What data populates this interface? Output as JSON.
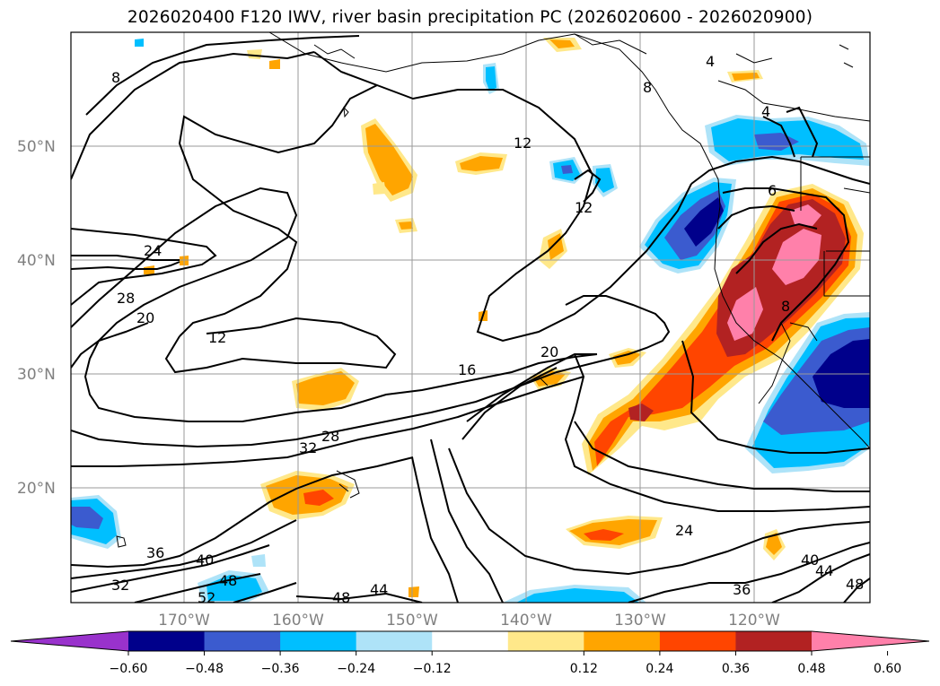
{
  "title": "2026020400 F120 IWV, river basin precipitation PC (2026020600 - 2026020900)",
  "map": {
    "lon_labels": [
      "170°W",
      "160°W",
      "150°W",
      "140°W",
      "130°W",
      "120°W"
    ],
    "lat_labels": [
      "50°N",
      "40°N",
      "30°N",
      "20°N"
    ],
    "iwv_contour_labels": [
      "8",
      "12",
      "12",
      "12",
      "16",
      "20",
      "20",
      "24",
      "24",
      "28",
      "28",
      "32",
      "32",
      "36",
      "36",
      "40",
      "40",
      "44",
      "44",
      "48",
      "48",
      "48",
      "52",
      "8",
      "6",
      "8",
      "4",
      "4"
    ]
  },
  "colorbar": {
    "tick_labels": [
      "−0.60",
      "−0.48",
      "−0.36",
      "−0.24",
      "−0.12",
      "0.12",
      "0.24",
      "0.36",
      "0.48",
      "0.60"
    ],
    "colors": [
      "#9932cc",
      "#00008b",
      "#3b5bcf",
      "#00bfff",
      "#aee3f8",
      "#ffffff",
      "#ffe88a",
      "#ffa500",
      "#ff4500",
      "#b22222",
      "#ff80aa"
    ]
  },
  "colors": {
    "neg_strong": "#00008b",
    "neg_mid": "#3b5bcf",
    "neg_light": "#00bfff",
    "neg_pale": "#aee3f8",
    "pos_pale": "#ffe88a",
    "pos_light": "#ffa500",
    "pos_mid": "#ff4500",
    "pos_strong": "#b22222",
    "pos_max": "#ff80aa",
    "grid": "#9a9a9a"
  }
}
